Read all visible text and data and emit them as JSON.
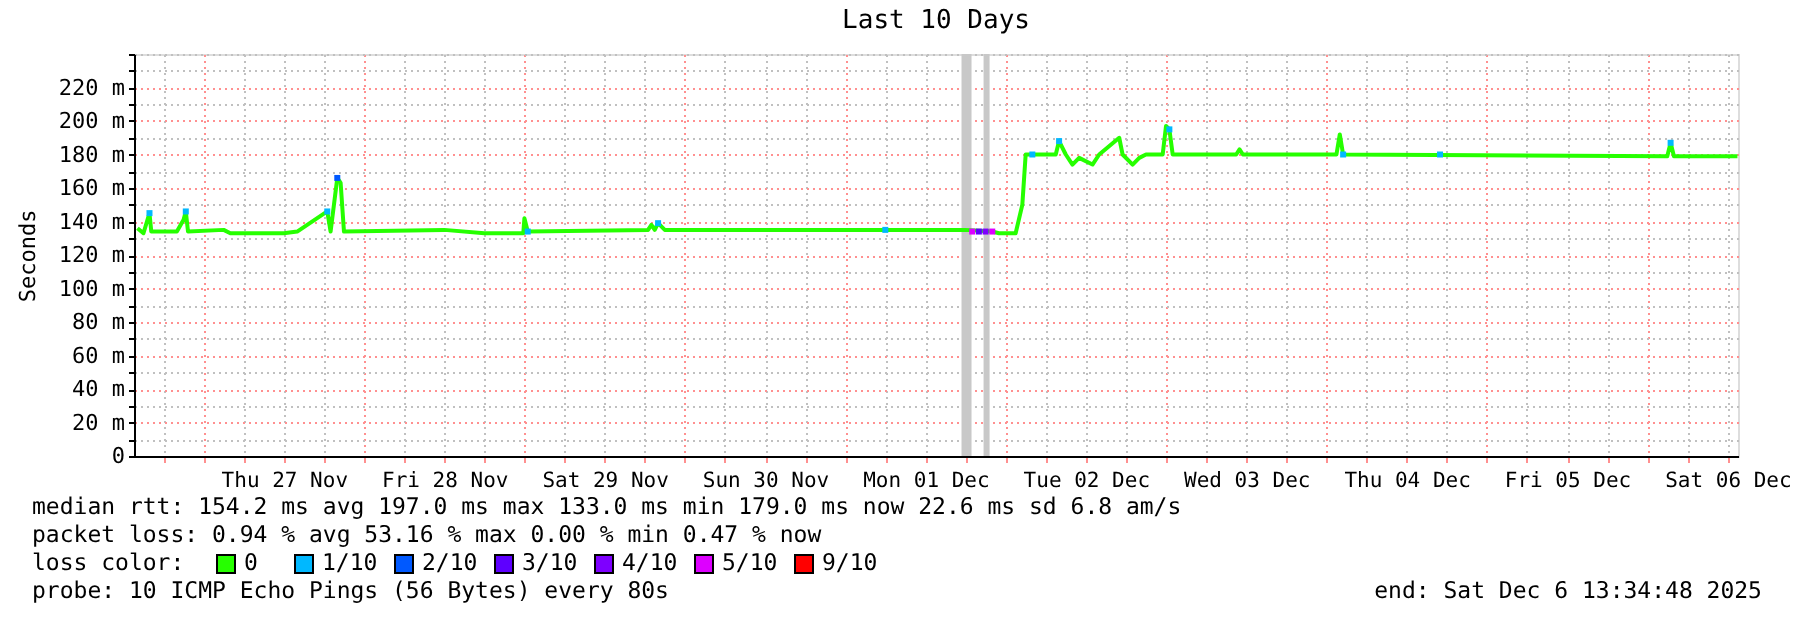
{
  "chart_data": {
    "type": "line",
    "title": "Last 10 Days",
    "ylabel": "Seconds",
    "legend_title": "loss color:",
    "legend": "bottom",
    "grid": true,
    "xlim": [
      "2025-11-26T13:35",
      "2025-12-06T13:35"
    ],
    "xticks": [
      {
        "value": "2025-11-26T18:00",
        "label": null
      },
      {
        "value": "2025-11-27T00:00",
        "label": null
      },
      {
        "value": "2025-11-27T06:00",
        "label": null
      },
      {
        "value": "2025-11-27T12:00",
        "label": "Thu 27 Nov"
      },
      {
        "value": "2025-11-27T18:00",
        "label": null
      },
      {
        "value": "2025-11-28T00:00",
        "label": null
      },
      {
        "value": "2025-11-28T06:00",
        "label": null
      },
      {
        "value": "2025-11-28T12:00",
        "label": "Fri 28 Nov"
      },
      {
        "value": "2025-11-28T18:00",
        "label": null
      },
      {
        "value": "2025-11-29T00:00",
        "label": null
      },
      {
        "value": "2025-11-29T06:00",
        "label": null
      },
      {
        "value": "2025-11-29T12:00",
        "label": "Sat 29 Nov"
      },
      {
        "value": "2025-11-29T18:00",
        "label": null
      },
      {
        "value": "2025-11-30T00:00",
        "label": null
      },
      {
        "value": "2025-11-30T06:00",
        "label": null
      },
      {
        "value": "2025-11-30T12:00",
        "label": "Sun 30 Nov"
      },
      {
        "value": "2025-11-30T18:00",
        "label": null
      },
      {
        "value": "2025-12-01T00:00",
        "label": null
      },
      {
        "value": "2025-12-01T06:00",
        "label": null
      },
      {
        "value": "2025-12-01T12:00",
        "label": "Mon 01 Dec"
      },
      {
        "value": "2025-12-01T18:00",
        "label": null
      },
      {
        "value": "2025-12-02T00:00",
        "label": null
      },
      {
        "value": "2025-12-02T06:00",
        "label": null
      },
      {
        "value": "2025-12-02T12:00",
        "label": "Tue 02 Dec"
      },
      {
        "value": "2025-12-02T18:00",
        "label": null
      },
      {
        "value": "2025-12-03T00:00",
        "label": null
      },
      {
        "value": "2025-12-03T06:00",
        "label": null
      },
      {
        "value": "2025-12-03T12:00",
        "label": "Wed 03 Dec"
      },
      {
        "value": "2025-12-03T18:00",
        "label": null
      },
      {
        "value": "2025-12-04T00:00",
        "label": null
      },
      {
        "value": "2025-12-04T06:00",
        "label": null
      },
      {
        "value": "2025-12-04T12:00",
        "label": "Thu 04 Dec"
      },
      {
        "value": "2025-12-04T18:00",
        "label": null
      },
      {
        "value": "2025-12-05T00:00",
        "label": null
      },
      {
        "value": "2025-12-05T06:00",
        "label": null
      },
      {
        "value": "2025-12-05T12:00",
        "label": "Fri 05 Dec"
      },
      {
        "value": "2025-12-05T18:00",
        "label": null
      },
      {
        "value": "2025-12-06T00:00",
        "label": null
      },
      {
        "value": "2025-12-06T06:00",
        "label": null
      },
      {
        "value": "2025-12-06T12:00",
        "label": "Sat 06 Dec"
      }
    ],
    "ylim": [
      0,
      240
    ],
    "yticks": [
      0,
      {
        "value": 10,
        "label": null
      },
      {
        "value": 20,
        "label": "20 m"
      },
      {
        "value": 30,
        "label": null
      },
      {
        "value": 40,
        "label": "40 m"
      },
      {
        "value": 50,
        "label": null
      },
      {
        "value": 60,
        "label": "60 m"
      },
      {
        "value": 70,
        "label": null
      },
      {
        "value": 80,
        "label": "80 m"
      },
      {
        "value": 90,
        "label": null
      },
      {
        "value": 100,
        "label": "100 m"
      },
      {
        "value": 110,
        "label": null
      },
      {
        "value": 120,
        "label": "120 m"
      },
      {
        "value": 130,
        "label": null
      },
      {
        "value": 140,
        "label": "140 m"
      },
      {
        "value": 150,
        "label": null
      },
      {
        "value": 160,
        "label": "160 m"
      },
      {
        "value": 170,
        "label": null
      },
      {
        "value": 180,
        "label": "180 m"
      },
      {
        "value": 190,
        "label": null
      },
      {
        "value": 200,
        "label": "200 m"
      },
      {
        "value": 210,
        "label": null
      },
      {
        "value": 220,
        "label": "220 m"
      },
      {
        "value": 230,
        "label": null
      },
      {
        "value": 240,
        "label": null
      }
    ],
    "bands": [
      {
        "axis": "x",
        "from": "2025-12-01T17:24",
        "to": "2025-12-01T18:54",
        "color": "#c8c8c8"
      },
      {
        "axis": "x",
        "from": "2025-12-01T20:42",
        "to": "2025-12-01T21:36",
        "color": "#c8c8c8"
      }
    ],
    "series": [
      {
        "name": "0",
        "color": "#26ff00",
        "x": [
          "2025-11-26T14:06",
          "2025-11-26T15:00",
          "2025-11-26T15:54",
          "2025-11-26T16:10",
          "2025-11-26T20:00",
          "2025-11-26T21:00",
          "2025-11-26T21:20",
          "2025-11-26T21:40",
          "2025-11-27T03:00",
          "2025-11-27T04:00",
          "2025-11-27T12:00",
          "2025-11-27T14:00",
          "2025-11-27T18:30",
          "2025-11-27T19:00",
          "2025-11-27T20:00",
          "2025-11-27T20:30",
          "2025-11-27T21:00",
          "2025-11-28T12:00",
          "2025-11-28T18:00",
          "2025-11-28T23:50",
          "2025-11-29T00:00",
          "2025-11-29T00:30",
          "2025-11-29T18:30",
          "2025-11-29T19:00",
          "2025-11-29T19:30",
          "2025-11-29T20:00",
          "2025-11-29T21:00",
          "2025-12-01T18:00",
          "2025-12-01T22:00",
          "2025-12-01T23:00",
          "2025-12-02T01:30",
          "2025-12-02T02:30",
          "2025-12-02T03:00",
          "2025-12-02T07:30",
          "2025-12-02T08:00",
          "2025-12-02T09:00",
          "2025-12-02T10:00",
          "2025-12-02T11:00",
          "2025-12-02T13:00",
          "2025-12-02T14:00",
          "2025-12-02T17:00",
          "2025-12-02T17:30",
          "2025-12-02T19:00",
          "2025-12-02T20:00",
          "2025-12-02T21:00",
          "2025-12-02T23:30",
          "2025-12-03T00:00",
          "2025-12-03T00:30",
          "2025-12-03T01:00",
          "2025-12-03T10:30",
          "2025-12-03T11:00",
          "2025-12-03T11:30",
          "2025-12-04T01:30",
          "2025-12-04T02:00",
          "2025-12-04T02:30",
          "2025-12-06T03:00",
          "2025-12-06T03:30",
          "2025-12-06T04:00",
          "2025-12-06T13:30"
        ],
        "values": [
          136,
          133,
          145,
          134,
          134,
          141,
          146,
          134,
          135,
          133,
          133,
          134,
          146,
          134,
          166,
          163,
          134,
          135,
          133,
          133,
          142,
          134,
          135,
          138,
          135,
          139,
          135,
          135,
          134,
          133,
          133,
          150,
          180,
          180,
          188,
          180,
          174,
          178,
          174,
          180,
          190,
          180,
          174,
          178,
          180,
          180,
          197,
          195,
          180,
          180,
          183,
          180,
          180,
          192,
          180,
          179,
          187,
          179,
          179
        ]
      },
      {
        "name": "1/10",
        "color": "#00b8ff",
        "type": "scatter",
        "marker": "square",
        "x": [
          "2025-11-26T15:54",
          "2025-11-26T21:20",
          "2025-11-27T18:30",
          "2025-11-29T00:30",
          "2025-11-29T20:00",
          "2025-12-01T06:00",
          "2025-12-02T04:00",
          "2025-12-02T08:00",
          "2025-12-03T00:30",
          "2025-12-04T02:30",
          "2025-12-04T17:00",
          "2025-12-06T03:30"
        ],
        "values": [
          145,
          146,
          146,
          134,
          139,
          135,
          180,
          188,
          195,
          180,
          180,
          187
        ]
      },
      {
        "name": "2/10",
        "color": "#0059ff",
        "type": "scatter",
        "marker": "square",
        "x": [
          "2025-11-27T20:00"
        ],
        "values": [
          166
        ]
      },
      {
        "name": "3/10",
        "color": "#5e00ff",
        "type": "scatter",
        "marker": "square",
        "x": [
          "2025-12-01T20:00"
        ],
        "values": [
          134
        ]
      },
      {
        "name": "4/10",
        "color": "#7e00ff",
        "type": "scatter",
        "marker": "square",
        "x": [
          "2025-12-01T21:00"
        ],
        "values": [
          134
        ]
      },
      {
        "name": "5/10",
        "color": "#dd00ff",
        "type": "scatter",
        "marker": "square",
        "x": [
          "2025-12-01T19:00",
          "2025-12-01T22:00"
        ],
        "values": [
          134,
          134
        ]
      },
      {
        "name": "9/10",
        "color": "#ff0000"
      }
    ],
    "annotations": [
      "median rtt:  154.2 ms avg  197.0 ms max  133.0 ms min  179.0 ms now  22.6 ms sd  6.8   am/s",
      "packet loss: 0.94 % avg  53.16 % max  0.00 % min  0.47 % now",
      "probe:       10 ICMP Echo Pings (56 Bytes) every 80s",
      "end: Sat Dec  6 13:34:48 2025"
    ]
  }
}
